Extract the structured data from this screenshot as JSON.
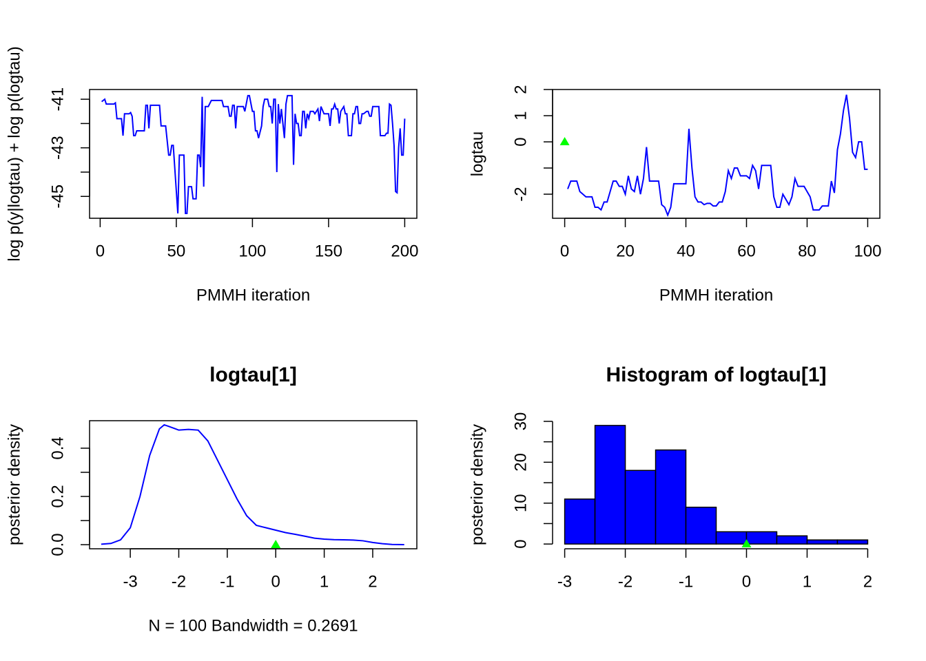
{
  "chart_data": [
    {
      "type": "line",
      "xlabel": "PMMH iteration",
      "ylabel": "log p(y|logtau) + log p(logtau)",
      "color": "#0000ff",
      "box": true,
      "x": [
        1,
        3,
        4,
        9,
        10,
        11,
        14,
        15,
        16,
        19,
        20,
        21,
        22,
        23,
        24,
        29,
        30,
        31,
        32,
        33,
        39,
        40,
        43,
        45,
        46,
        47,
        48,
        51,
        52,
        55,
        56,
        57,
        58,
        60,
        61,
        63,
        64,
        65,
        66,
        67,
        68,
        69,
        71,
        73,
        80,
        81,
        84,
        85,
        86,
        87,
        88,
        89,
        90,
        94,
        95,
        97,
        98,
        100,
        101,
        102,
        103,
        104,
        106,
        107,
        108,
        110,
        111,
        112,
        113,
        114,
        115,
        116,
        117,
        118,
        119,
        121,
        122,
        123,
        126,
        127,
        128,
        129,
        130,
        131,
        132,
        133,
        134,
        135,
        136,
        137,
        138,
        140,
        141,
        143,
        144,
        145,
        147,
        150,
        151,
        152,
        153,
        154,
        155,
        156,
        157,
        158,
        160,
        161,
        162,
        163,
        164,
        165,
        166,
        167,
        168,
        169,
        170,
        171,
        172,
        173,
        175,
        176,
        177,
        178,
        179,
        183,
        184,
        187,
        188,
        189,
        190,
        191,
        192,
        193,
        194,
        195,
        196,
        197,
        198,
        199,
        200
      ],
      "values": [
        -41.1,
        -41.0,
        -41.2,
        -41.2,
        -41.15,
        -41.8,
        -41.8,
        -42.5,
        -41.6,
        -41.6,
        -41.55,
        -41.7,
        -42.5,
        -42.5,
        -42.3,
        -42.3,
        -41.25,
        -41.25,
        -42.2,
        -41.25,
        -41.25,
        -42.1,
        -42.1,
        -43.3,
        -43.3,
        -42.9,
        -42.9,
        -45.7,
        -43.3,
        -43.3,
        -45.7,
        -45.7,
        -44.6,
        -44.6,
        -45.1,
        -45.1,
        -43.3,
        -43.3,
        -43.8,
        -40.9,
        -44.6,
        -41.3,
        -41.3,
        -41.05,
        -41.05,
        -41.3,
        -41.3,
        -41.7,
        -41.7,
        -41.25,
        -41.25,
        -42.2,
        -41.3,
        -41.3,
        -41.5,
        -40.85,
        -40.85,
        -41.5,
        -41.5,
        -42.3,
        -42.3,
        -42.6,
        -42.1,
        -41.3,
        -41.0,
        -41.0,
        -41.3,
        -41.3,
        -42.0,
        -41.0,
        -41.0,
        -44.0,
        -41.2,
        -42.0,
        -41.4,
        -42.6,
        -41.2,
        -40.85,
        -40.85,
        -43.7,
        -41.6,
        -42.0,
        -42.0,
        -42.5,
        -42.5,
        -41.5,
        -41.5,
        -42.2,
        -41.6,
        -41.8,
        -41.5,
        -41.5,
        -41.6,
        -41.4,
        -41.9,
        -41.3,
        -41.6,
        -41.6,
        -42.1,
        -41.4,
        -41.4,
        -41.2,
        -41.4,
        -41.4,
        -42.0,
        -41.5,
        -41.3,
        -41.6,
        -41.6,
        -42.5,
        -42.5,
        -42.5,
        -41.6,
        -41.6,
        -41.3,
        -41.3,
        -42.0,
        -42.0,
        -41.6,
        -41.6,
        -41.5,
        -41.5,
        -41.7,
        -41.7,
        -41.3,
        -41.3,
        -42.5,
        -42.5,
        -42.4,
        -42.4,
        -41.2,
        -41.25,
        -42.0,
        -42.9,
        -44.8,
        -44.85,
        -43.0,
        -42.2,
        -43.3,
        -43.3,
        -41.8
      ],
      "xlim": [
        -6.96,
        207.96
      ],
      "xticks": [
        0,
        50,
        100,
        150,
        200
      ],
      "ylim": [
        -45.9,
        -40.6
      ],
      "yticks": [
        -41,
        -43,
        -45
      ],
      "yminor_ticks": [
        -42,
        -44
      ]
    },
    {
      "type": "line",
      "xlabel": "PMMH iteration",
      "ylabel": "logtau",
      "color": "#0000ff",
      "box": true,
      "x": [
        1,
        2,
        3,
        4,
        5,
        6,
        7,
        8,
        9,
        10,
        11,
        12,
        13,
        14,
        15,
        16,
        17,
        18,
        19,
        20,
        21,
        22,
        23,
        24,
        25,
        26,
        27,
        28,
        29,
        30,
        31,
        32,
        33,
        34,
        35,
        36,
        37,
        38,
        39,
        40,
        41,
        42,
        43,
        44,
        45,
        46,
        47,
        48,
        49,
        50,
        51,
        52,
        53,
        54,
        55,
        56,
        57,
        58,
        59,
        60,
        61,
        62,
        63,
        64,
        65,
        66,
        67,
        68,
        69,
        70,
        71,
        72,
        73,
        74,
        75,
        76,
        77,
        78,
        79,
        80,
        81,
        82,
        83,
        84,
        85,
        86,
        87,
        88,
        89,
        90,
        91,
        92,
        93,
        94,
        95,
        96,
        97,
        98,
        99,
        100
      ],
      "values": [
        -1.8,
        -1.5,
        -1.5,
        -1.5,
        -1.9,
        -2.0,
        -2.1,
        -2.1,
        -2.1,
        -2.5,
        -2.5,
        -2.6,
        -2.3,
        -2.3,
        -1.9,
        -1.5,
        -1.5,
        -1.7,
        -1.7,
        -2.0,
        -1.3,
        -1.8,
        -1.9,
        -1.3,
        -2.0,
        -1.4,
        -0.2,
        -1.5,
        -1.5,
        -1.5,
        -1.5,
        -2.4,
        -2.5,
        -2.8,
        -2.5,
        -1.6,
        -1.6,
        -1.6,
        -1.6,
        -1.6,
        0.5,
        -1.0,
        -2.1,
        -2.3,
        -2.3,
        -2.4,
        -2.35,
        -2.35,
        -2.45,
        -2.45,
        -2.3,
        -2.3,
        -1.9,
        -1.1,
        -1.4,
        -1.0,
        -1.0,
        -1.3,
        -1.3,
        -1.3,
        -1.4,
        -0.9,
        -1.1,
        -1.8,
        -0.9,
        -0.9,
        -0.9,
        -0.9,
        -2.1,
        -2.5,
        -2.5,
        -2.0,
        -2.2,
        -2.4,
        -2.1,
        -1.4,
        -1.7,
        -1.7,
        -1.7,
        -1.9,
        -2.1,
        -2.6,
        -2.6,
        -2.6,
        -2.45,
        -2.45,
        -2.45,
        -1.5,
        -1.95,
        -0.3,
        0.3,
        1.2,
        1.8,
        0.9,
        -0.4,
        -0.6,
        0.0,
        0.0,
        -1.05,
        -1.05
      ],
      "marker": {
        "x": 0,
        "y": 0,
        "color": "#00ff00"
      },
      "xlim": [
        -4,
        104
      ],
      "xticks": [
        0,
        20,
        40,
        60,
        80,
        100
      ],
      "ylim": [
        -2.92,
        2.0
      ],
      "yticks": [
        -2,
        0,
        1,
        2
      ],
      "yminor_ticks": [
        -1
      ]
    },
    {
      "type": "density",
      "title": "logtau[1]",
      "xlabel": "N = 100   Bandwidth = 0.2691",
      "ylabel": "posterior density",
      "color": "#0000ff",
      "box": true,
      "x": [
        -3.6,
        -3.4,
        -3.2,
        -3.0,
        -2.8,
        -2.6,
        -2.4,
        -2.3,
        -2.2,
        -2.0,
        -1.8,
        -1.6,
        -1.4,
        -1.2,
        -1.0,
        -0.8,
        -0.6,
        -0.4,
        -0.2,
        0,
        0.2,
        0.4,
        0.6,
        0.8,
        1.0,
        1.2,
        1.4,
        1.6,
        1.8,
        2.0,
        2.2,
        2.4,
        2.65
      ],
      "values": [
        0.002,
        0.005,
        0.02,
        0.07,
        0.2,
        0.37,
        0.48,
        0.497,
        0.49,
        0.475,
        0.478,
        0.475,
        0.43,
        0.35,
        0.27,
        0.19,
        0.12,
        0.08,
        0.07,
        0.06,
        0.05,
        0.043,
        0.035,
        0.027,
        0.023,
        0.021,
        0.02,
        0.019,
        0.016,
        0.009,
        0.004,
        0.001,
        0.0003
      ],
      "marker": {
        "x": 0,
        "y": 0,
        "color": "#00ff00"
      },
      "xlim": [
        -3.84,
        2.91
      ],
      "xticks": [
        -3,
        -2,
        -1,
        0,
        1,
        2
      ],
      "ylim": [
        -0.017,
        0.514
      ],
      "yticks": [
        {
          "value": 0,
          "label": "0.0"
        },
        {
          "value": 0.2,
          "label": "0.2"
        },
        {
          "value": 0.4,
          "label": "0.4"
        }
      ],
      "yminor_ticks": [
        0.1,
        0.3
      ]
    },
    {
      "type": "histogram",
      "title": "Histogram of logtau[1]",
      "ylabel": "posterior density",
      "color": "#0000ff",
      "edgecolor": "#000000",
      "box": false,
      "bins": [
        -3,
        -2.5,
        -2,
        -1.5,
        -1,
        -0.5,
        0,
        0.5,
        1,
        1.5,
        2
      ],
      "values": [
        11,
        29,
        18,
        23,
        9,
        3,
        3,
        2,
        1,
        1
      ],
      "marker": {
        "x": 0,
        "y": 0,
        "color": "#00ff00"
      },
      "xlim": [
        -3.2,
        2.2
      ],
      "xticks": [
        -3,
        -2,
        -1,
        0,
        1,
        2
      ],
      "ylim": [
        -1.16,
        30.16
      ],
      "yticks": [
        0,
        10,
        20,
        30
      ],
      "yminor_ticks": [
        5,
        15,
        25
      ]
    }
  ]
}
